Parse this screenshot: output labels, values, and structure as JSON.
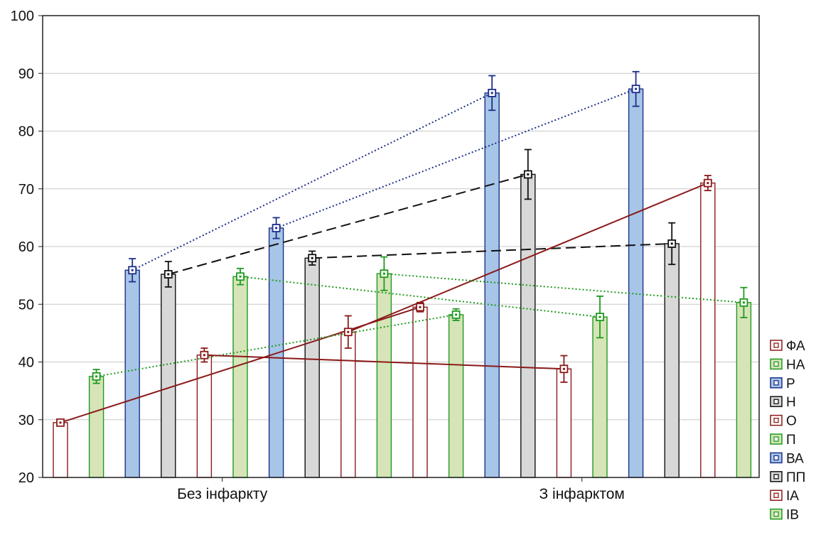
{
  "chart_data": {
    "type": "bar",
    "categories": [
      "Без інфаркту",
      "З інфарктом"
    ],
    "ylim": [
      20,
      100
    ],
    "yticks": [
      20,
      30,
      40,
      50,
      60,
      70,
      80,
      90,
      100
    ],
    "grid": true,
    "legend_position": "right-bottom",
    "series": [
      {
        "name": "ФА",
        "color": "#8b1a1a",
        "fill": "#ffffff",
        "line_style": "solid",
        "values": [
          29.5,
          49.5
        ],
        "error": [
          0.5,
          0.8
        ]
      },
      {
        "name": "НА",
        "color": "#1f9a1f",
        "fill": "#d6e4b8",
        "line_style": "dotted",
        "values": [
          37.5,
          48.2
        ],
        "error": [
          1.2,
          1.0
        ]
      },
      {
        "name": "Р",
        "color": "#1c2f8a",
        "fill": "#a7c5e6",
        "line_style": "dotted",
        "values": [
          55.9,
          86.6
        ],
        "error": [
          2.0,
          3.0
        ]
      },
      {
        "name": "Н",
        "color": "#111111",
        "fill": "#d8d8d8",
        "line_style": "dashed",
        "values": [
          55.2,
          72.5
        ],
        "error": [
          2.2,
          4.3
        ]
      },
      {
        "name": "О",
        "color": "#8b1a1a",
        "fill": "#ffffff",
        "line_style": "solid",
        "values": [
          41.2,
          38.8
        ],
        "error": [
          1.2,
          2.3
        ]
      },
      {
        "name": "П",
        "color": "#1f9a1f",
        "fill": "#d6e4b8",
        "line_style": "dotted",
        "values": [
          54.8,
          47.8
        ],
        "error": [
          1.4,
          3.6
        ]
      },
      {
        "name": "ВА",
        "color": "#1c2f8a",
        "fill": "#a7c5e6",
        "line_style": "dotted",
        "values": [
          63.2,
          87.3
        ],
        "error": [
          1.8,
          3.0
        ]
      },
      {
        "name": "ПП",
        "color": "#111111",
        "fill": "#d8d8d8",
        "line_style": "dashed",
        "values": [
          58.0,
          60.5
        ],
        "error": [
          1.2,
          3.6
        ]
      },
      {
        "name": "ІА",
        "color": "#8b1a1a",
        "fill": "#ffffff",
        "line_style": "solid",
        "values": [
          45.2,
          71.0
        ],
        "error": [
          2.8,
          1.3
        ]
      },
      {
        "name": "ІВ",
        "color": "#1f9a1f",
        "fill": "#d6e4b8",
        "line_style": "dotted",
        "values": [
          55.3,
          50.3
        ],
        "error": [
          2.9,
          2.6
        ]
      }
    ]
  }
}
